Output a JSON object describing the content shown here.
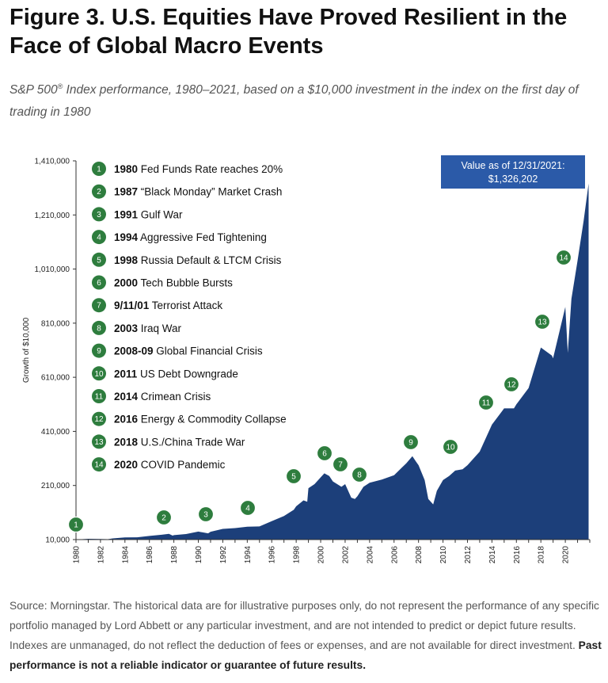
{
  "title": "Figure 3. U.S. Equities Have Proved Resilient in the Face of Global Macro Events",
  "subtitle": {
    "prefix": "S&P 500",
    "reg": "®",
    "suffix": " Index performance, 1980–2021, based on a $10,000 investment in the index on the first day of trading in 1980"
  },
  "colors": {
    "area": "#1c3f7a",
    "marker": "#2e7d3e",
    "value_box": "#2b5aa8",
    "axis": "#333333"
  },
  "chart_data": {
    "type": "area",
    "ylabel": "Growth of $10,000",
    "xlabel": "",
    "xlim": [
      1980,
      2022
    ],
    "ylim": [
      10000,
      1410000
    ],
    "y_ticks": [
      "10,000",
      "210,000",
      "410,000",
      "610,000",
      "810,000",
      "1,010,000",
      "1,210,000",
      "1,410,000"
    ],
    "y_tick_values": [
      10000,
      210000,
      410000,
      610000,
      810000,
      1010000,
      1210000,
      1410000
    ],
    "x_ticks": [
      "1980",
      "1982",
      "1984",
      "1986",
      "1988",
      "1990",
      "1992",
      "1994",
      "1996",
      "1998",
      "2000",
      "2002",
      "2004",
      "2006",
      "2008",
      "2010",
      "2012",
      "2014",
      "2016",
      "2018",
      "2020"
    ],
    "series": [
      {
        "x": [
          1980,
          1981,
          1982,
          1982.6,
          1983,
          1984,
          1985,
          1986,
          1987,
          1987.6,
          1987.9,
          1988,
          1989,
          1990,
          1990.8,
          1991,
          1992,
          1993,
          1994,
          1995,
          1996,
          1997,
          1997.8,
          1998,
          1998.6,
          1998.9,
          1999,
          1999.5,
          2000,
          2000.3,
          2000.7,
          2001,
          2001.7,
          2002,
          2002.5,
          2002.8,
          2003,
          2003.5,
          2004,
          2005,
          2006,
          2007,
          2007.5,
          2007.8,
          2008,
          2008.5,
          2008.8,
          2009.2,
          2009.5,
          2010,
          2010.5,
          2011,
          2011.6,
          2012,
          2013,
          2014,
          2015,
          2015.8,
          2016,
          2017,
          2018,
          2018.9,
          2019,
          2020,
          2020.2,
          2020.5,
          2021,
          2021.5,
          2021.9
        ],
        "y": [
          10000,
          13000,
          12000,
          11500,
          14500,
          18000,
          18500,
          23500,
          28000,
          31500,
          24500,
          26500,
          30500,
          39500,
          33000,
          39000,
          49500,
          52500,
          57500,
          58500,
          78000,
          97000,
          120000,
          133000,
          155000,
          150000,
          200000,
          215000,
          240000,
          255000,
          245000,
          225000,
          205000,
          215000,
          165000,
          160000,
          170000,
          205000,
          220000,
          232000,
          248000,
          292000,
          318000,
          298000,
          285000,
          230000,
          160000,
          140000,
          190000,
          230000,
          245000,
          265000,
          270000,
          285000,
          335000,
          435000,
          495000,
          495000,
          510000,
          570000,
          720000,
          690000,
          680000,
          870000,
          700000,
          900000,
          1040000,
          1190000,
          1326202
        ]
      }
    ],
    "events": [
      {
        "num": "1",
        "year": "1980",
        "label": "Fed Funds Rate reaches 20%"
      },
      {
        "num": "2",
        "year": "1987",
        "label": "“Black Monday” Market Crash"
      },
      {
        "num": "3",
        "year": "1991",
        "label": "Gulf War"
      },
      {
        "num": "4",
        "year": "1994",
        "label": "Aggressive Fed Tightening"
      },
      {
        "num": "5",
        "year": "1998",
        "label": "Russia Default & LTCM Crisis"
      },
      {
        "num": "6",
        "year": "2000",
        "label": "Tech Bubble Bursts"
      },
      {
        "num": "7",
        "year": "9/11/01",
        "label": "Terrorist Attack"
      },
      {
        "num": "8",
        "year": "2003",
        "label": "Iraq War"
      },
      {
        "num": "9",
        "year": "2008-09",
        "label": "Global Financial Crisis"
      },
      {
        "num": "10",
        "year": "2011",
        "label": "US Debt Downgrade"
      },
      {
        "num": "11",
        "year": "2014",
        "label": "Crimean Crisis"
      },
      {
        "num": "12",
        "year": "2016",
        "label": "Energy & Commodity Collapse"
      },
      {
        "num": "13",
        "year": "2018",
        "label": "U.S./China Trade War"
      },
      {
        "num": "14",
        "year": "2020",
        "label": "COVID Pandemic"
      }
    ],
    "annotation": {
      "line1": "Value as of 12/31/2021:",
      "line2": "$1,326,202"
    }
  },
  "footer": {
    "normal": "Source: Morningstar. The historical data are for illustrative purposes only, do not represent the performance of any specific portfolio managed by Lord Abbett or any particular investment, and are not intended to predict or depict future results. Indexes are unmanaged, do not reflect the deduction of fees or expenses, and are not available for direct investment. ",
    "bold": "Past performance is not a reliable indicator or guarantee of future results."
  }
}
